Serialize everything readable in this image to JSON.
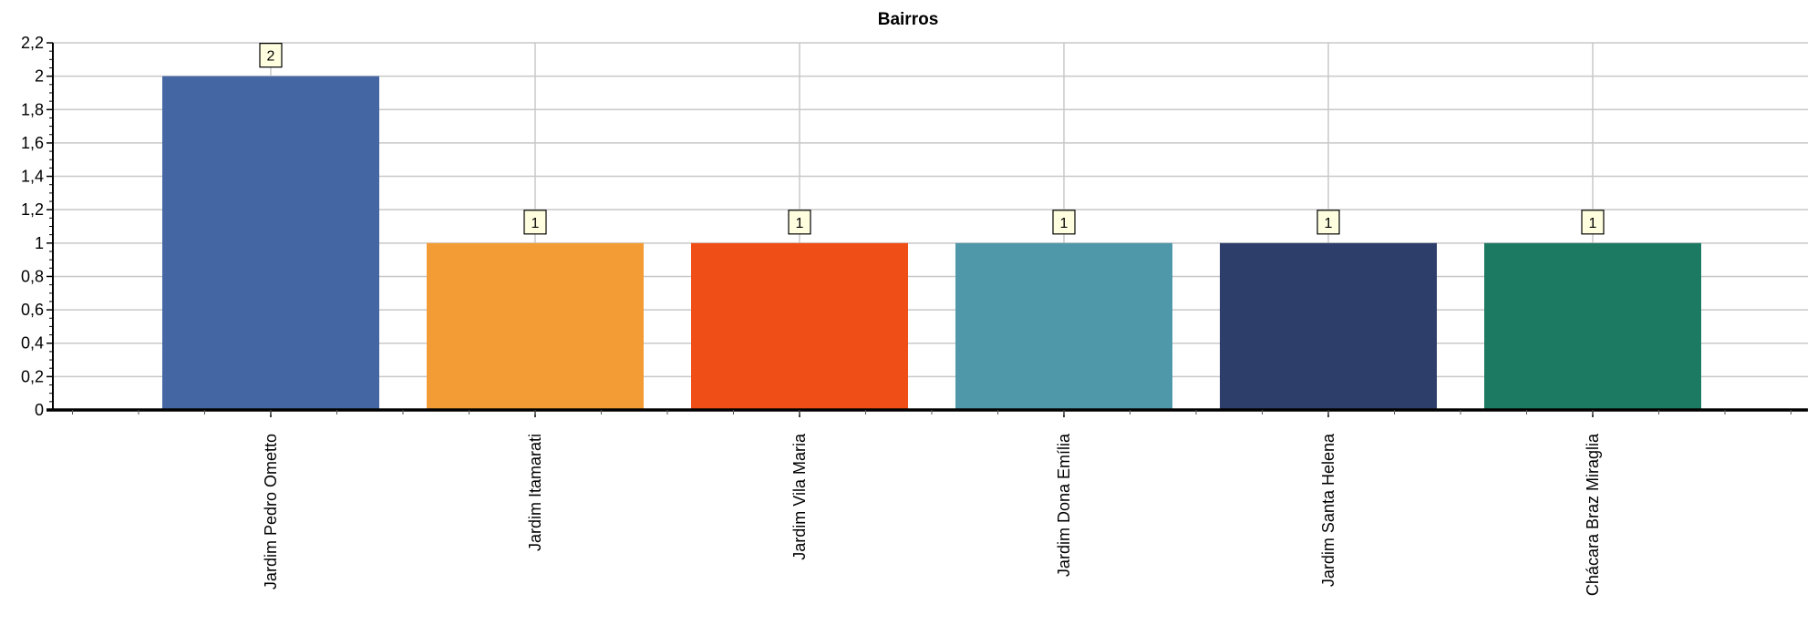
{
  "chart_data": {
    "type": "bar",
    "title": "Bairros",
    "xlabel": "",
    "ylabel": "",
    "categories": [
      "Jardim Pedro Ometto",
      "Jardim Itamarati",
      "Jardim Vila Maria",
      "Jardim Dona Emília",
      "Jardim Santa Helena",
      "Chácara Braz Miraglia"
    ],
    "values": [
      2,
      1,
      1,
      1,
      1,
      1
    ],
    "data_labels": [
      "2",
      "1",
      "1",
      "1",
      "1",
      "1"
    ],
    "colors": [
      "#4467a3",
      "#f39c35",
      "#f04e17",
      "#4f98a9",
      "#2d3e6b",
      "#1d7a62"
    ],
    "ylim": [
      0,
      2.2
    ],
    "yticks": [
      0,
      0.2,
      0.4,
      0.6,
      0.8,
      1,
      1.2,
      1.4,
      1.6,
      1.8,
      2,
      2.2
    ],
    "ytick_labels": [
      "0",
      "0,2",
      "0,4",
      "0,6",
      "0,8",
      "1",
      "1,2",
      "1,4",
      "1,6",
      "1,8",
      "2",
      "2,2"
    ],
    "grid": true,
    "legend": "none"
  }
}
